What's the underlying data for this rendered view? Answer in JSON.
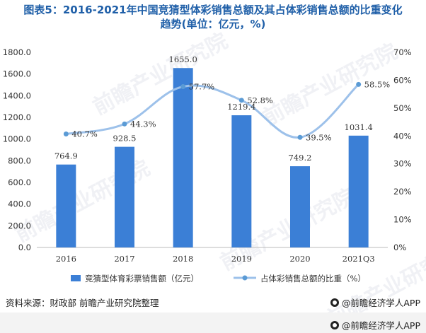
{
  "title": {
    "line1": "图表5：2016-2021年中国竞猜型体彩销售总额及其占体彩销售总额的比重变化",
    "line2": "趋势(单位：亿元，%)"
  },
  "chart_data": {
    "type": "bar",
    "categories": [
      "2016",
      "2017",
      "2018",
      "2019",
      "2020",
      "2021Q3"
    ],
    "series": [
      {
        "name": "竞猜型体育彩票销售额（亿元）",
        "type": "bar",
        "axis": "left",
        "values": [
          764.9,
          928.5,
          1655.0,
          1219.4,
          749.2,
          1031.4
        ],
        "labels": [
          "764.9",
          "928.5",
          "1655.0",
          "1219.4",
          "749.2",
          "1031.4"
        ]
      },
      {
        "name": "占体彩销售总额的比重（%）",
        "type": "line",
        "axis": "right",
        "values": [
          40.7,
          44.3,
          57.7,
          52.8,
          39.5,
          58.5
        ],
        "labels": [
          "40.7%",
          "44.3%",
          "57.7%",
          "52.8%",
          "39.5%",
          "58.5%"
        ]
      }
    ],
    "y_left": {
      "min": 0,
      "max": 1800,
      "ticks": [
        "0.0",
        "200.0",
        "400.0",
        "600.0",
        "800.0",
        "1000.0",
        "1200.0",
        "1400.0",
        "1600.0",
        "1800.0"
      ]
    },
    "y_right": {
      "min": 0,
      "max": 70,
      "ticks": [
        "0%",
        "10%",
        "20%",
        "30%",
        "40%",
        "50%",
        "60%",
        "70%"
      ]
    },
    "colors": {
      "bar": "#3b7fd6",
      "line": "#9dc1ea",
      "marker": "#5b9bd5",
      "text": "#333333",
      "axis": "#bbbbbb"
    },
    "legend_position": "bottom",
    "grid": false
  },
  "footer": {
    "source": "资料来源：财政部 前瞻产业研究院整理",
    "brand": "@前瞻经济学人APP",
    "brand2": "@前瞻经济学人APP"
  },
  "watermark": {
    "text": "前瞻产业研究院"
  }
}
